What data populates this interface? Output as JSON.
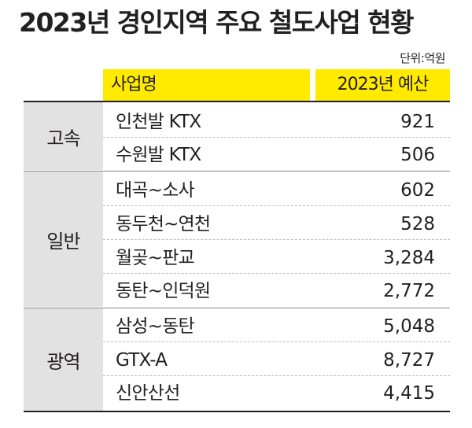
{
  "title": "2023년 경인지역 주요 철도사업 현황",
  "unit": "단위:억원",
  "header": {
    "name": "사업명",
    "budget": "2023년 예산"
  },
  "groups": [
    {
      "category": "고속",
      "rows": [
        {
          "name": "인천발 KTX",
          "budget": "921"
        },
        {
          "name": "수원발 KTX",
          "budget": "506"
        }
      ]
    },
    {
      "category": "일반",
      "rows": [
        {
          "name": "대곡~소사",
          "budget": "602"
        },
        {
          "name": "동두천~연천",
          "budget": "528"
        },
        {
          "name": "월곶~판교",
          "budget": "3,284"
        },
        {
          "name": "동탄~인덕원",
          "budget": "2,772"
        }
      ]
    },
    {
      "category": "광역",
      "rows": [
        {
          "name": "삼성~동탄",
          "budget": "5,048"
        },
        {
          "name": "GTX-A",
          "budget": "8,727"
        },
        {
          "name": "신안산선",
          "budget": "4,415"
        }
      ]
    }
  ]
}
